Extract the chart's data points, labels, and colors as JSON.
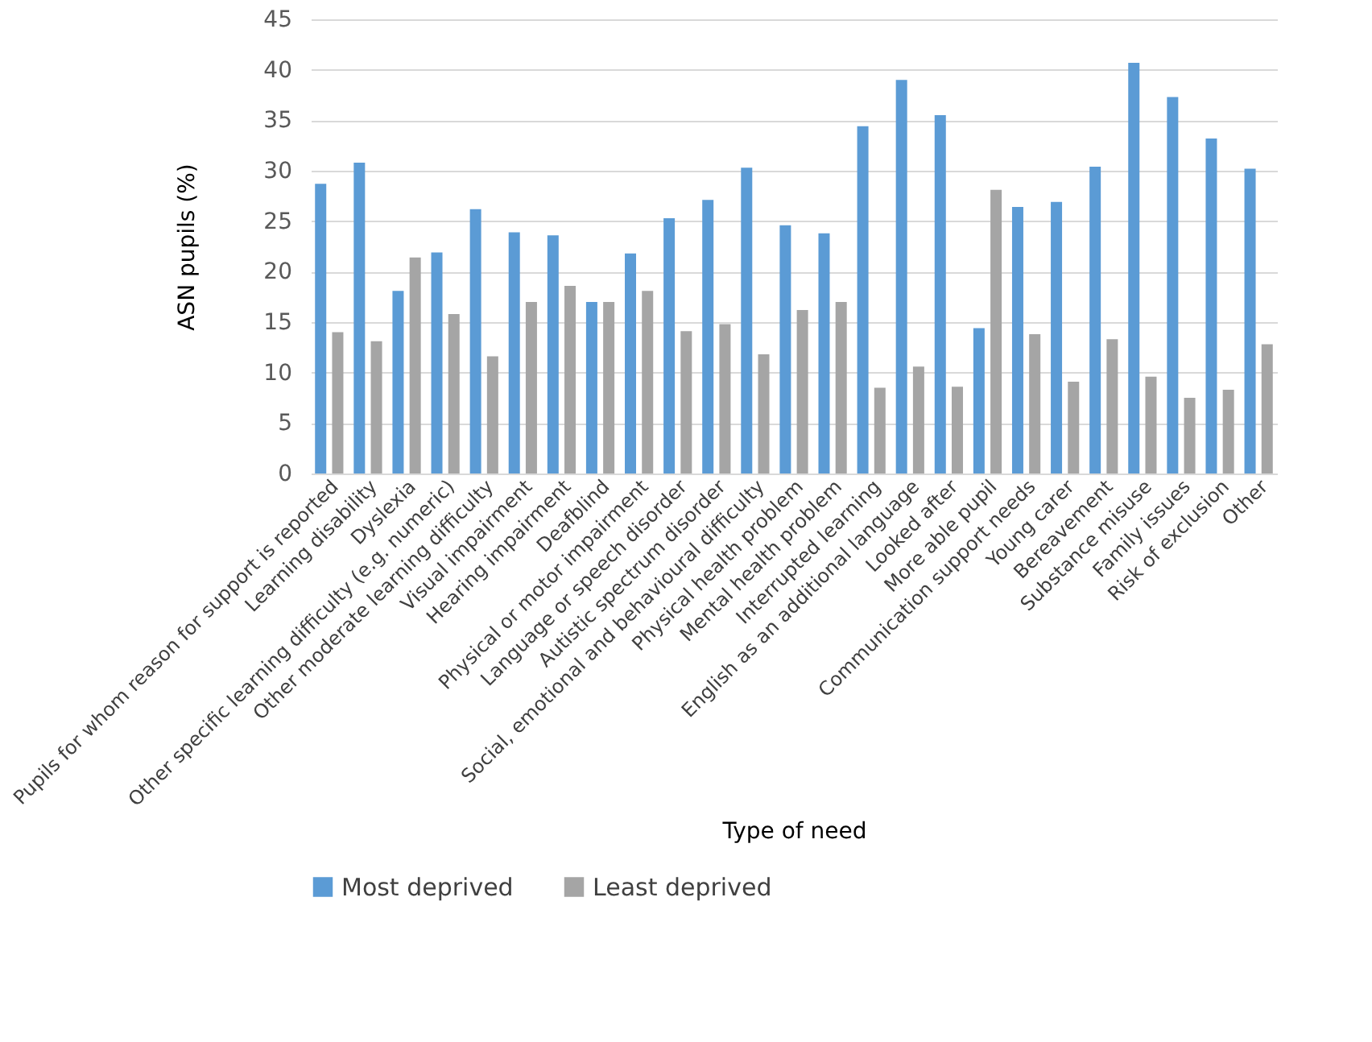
{
  "chart_data": {
    "type": "bar",
    "xlabel": "Type of need",
    "ylabel": "ASN pupils (%)",
    "categories": [
      "Pupils for whom reason for support is reported",
      "Learning disability",
      "Dyslexia",
      "Other specific learning difficulty (e.g. numeric)",
      "Other moderate learning difficulty",
      "Visual impairment",
      "Hearing impairment",
      "Deafblind",
      "Physical or motor impairment",
      "Language or speech disorder",
      "Autistic spectrum disorder",
      "Social, emotional and behavioural difficulty",
      "Physical health problem",
      "Mental health problem",
      "Interrupted learning",
      "English as an additional language",
      "Looked after",
      "More able pupil",
      "Communication support needs",
      "Young carer",
      "Bereavement",
      "Substance misuse",
      "Family issues",
      "Risk of exclusion",
      "Other"
    ],
    "series": [
      {
        "name": "Most deprived",
        "color": "#5b9bd5",
        "values": [
          28.7,
          30.8,
          18.1,
          21.9,
          26.2,
          23.9,
          23.6,
          17.0,
          21.8,
          25.3,
          27.1,
          30.3,
          24.6,
          23.8,
          34.4,
          39.0,
          35.5,
          14.4,
          26.4,
          26.9,
          30.4,
          40.7,
          37.3,
          33.2,
          30.2
        ]
      },
      {
        "name": "Least deprived",
        "color": "#a5a5a5",
        "values": [
          14.0,
          13.1,
          21.4,
          15.8,
          11.6,
          17.0,
          18.6,
          17.0,
          18.1,
          14.1,
          14.8,
          11.8,
          16.2,
          17.0,
          8.5,
          10.6,
          8.6,
          28.1,
          13.8,
          9.1,
          13.3,
          9.6,
          7.5,
          8.3,
          12.8
        ]
      }
    ],
    "ylim": [
      0,
      45
    ],
    "yticks": [
      0,
      5,
      10,
      15,
      20,
      25,
      30,
      35,
      40,
      45
    ],
    "grid": "y",
    "legend": "bottom"
  }
}
